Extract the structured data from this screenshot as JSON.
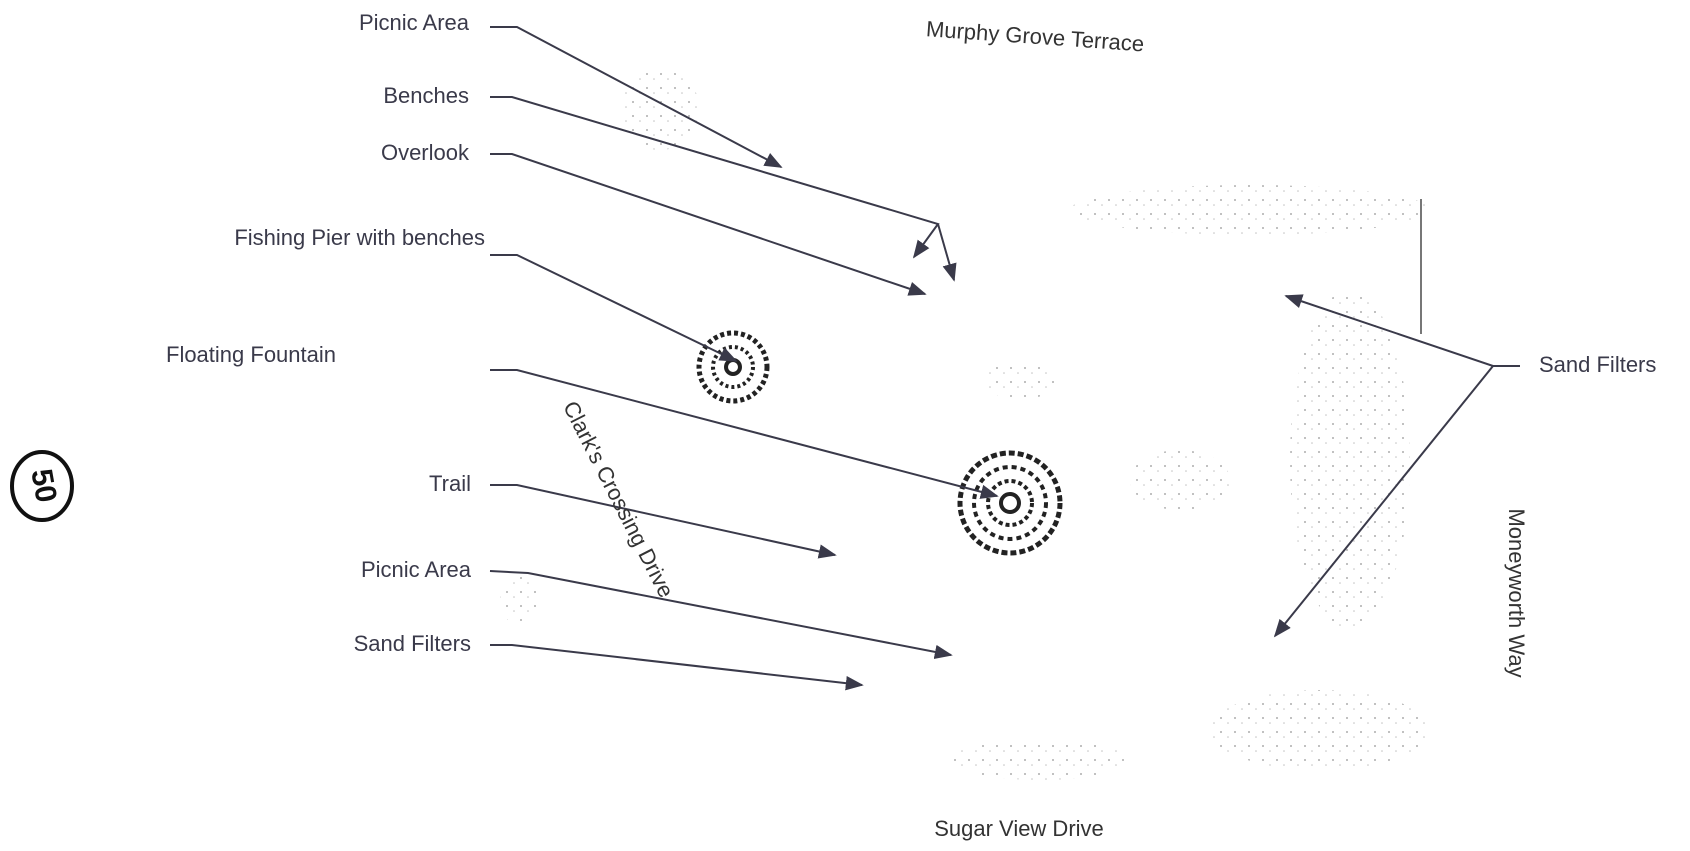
{
  "labels": [
    {
      "text": "Picnic Area"
    },
    {
      "text": "Benches"
    },
    {
      "text": "Overlook"
    },
    {
      "text": "Fishing Pier with benches"
    },
    {
      "text": "Floating Fountain"
    },
    {
      "text": "Trail"
    },
    {
      "text": "Picnic Area"
    },
    {
      "text": "Sand Filters"
    },
    {
      "text": "Sand Filters"
    }
  ],
  "streets": {
    "north": "Murphy Grove Terrace",
    "south": "Sugar View Drive",
    "east": "Moneyworth Way",
    "west": "Clark's Crossing Drive"
  },
  "page_number": "50"
}
